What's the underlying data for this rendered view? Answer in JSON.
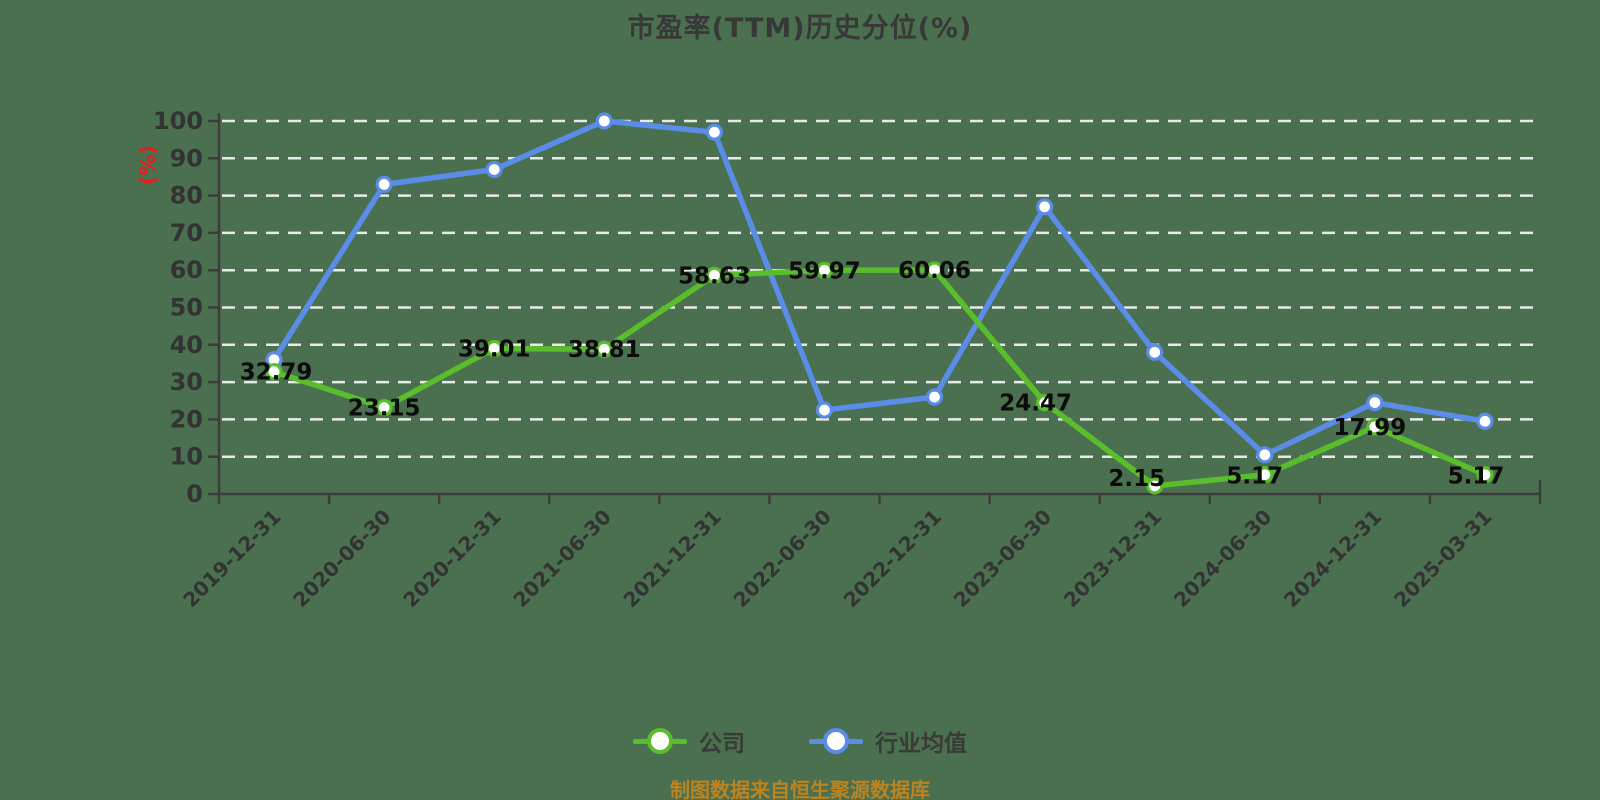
{
  "title": "市盈率(TTM)历史分位(%)",
  "source_note": "制图数据来自恒生聚源数据库",
  "colors": {
    "background": "#4a7050",
    "company": "#59bd2c",
    "industry": "#5b8ce8",
    "grid": "#e9e9e9",
    "axis": "#3c3c3c",
    "tick_text": "#333333",
    "data_label": "#0c0c0c",
    "title_text": "#383838",
    "legend_text": "#3a3a3a",
    "ylabel_text": "#e21f1f",
    "source_text": "#bd831f",
    "marker_fill": "#ffffff"
  },
  "legend": [
    {
      "name": "公司"
    },
    {
      "name": "行业均值"
    }
  ],
  "chart_data": {
    "type": "line",
    "title": "市盈率(TTM)历史分位(%)",
    "ylabel": "(%)",
    "xlabel": "",
    "ylim": [
      0,
      100
    ],
    "ytick_step": 10,
    "grid": true,
    "grid_style": "dashed",
    "legend_position": "bottom",
    "x_label_rotation": 45,
    "categories": [
      "2019-12-31",
      "2020-06-30",
      "2020-12-31",
      "2021-06-30",
      "2021-12-31",
      "2022-06-30",
      "2022-12-31",
      "2023-06-30",
      "2023-12-31",
      "2024-06-30",
      "2024-12-31",
      "2025-03-31"
    ],
    "series": [
      {
        "name": "公司",
        "color": "#59bd2c",
        "data_labels_shown": true,
        "values": [
          32.79,
          23.15,
          39.01,
          38.81,
          58.63,
          59.97,
          60.06,
          24.47,
          2.15,
          5.17,
          17.99,
          5.17
        ]
      },
      {
        "name": "行业均值",
        "color": "#5b8ce8",
        "data_labels_shown": false,
        "values": [
          36,
          83,
          87,
          100,
          97,
          22.5,
          26,
          77,
          38,
          10.5,
          24.5,
          19.5
        ]
      }
    ]
  }
}
